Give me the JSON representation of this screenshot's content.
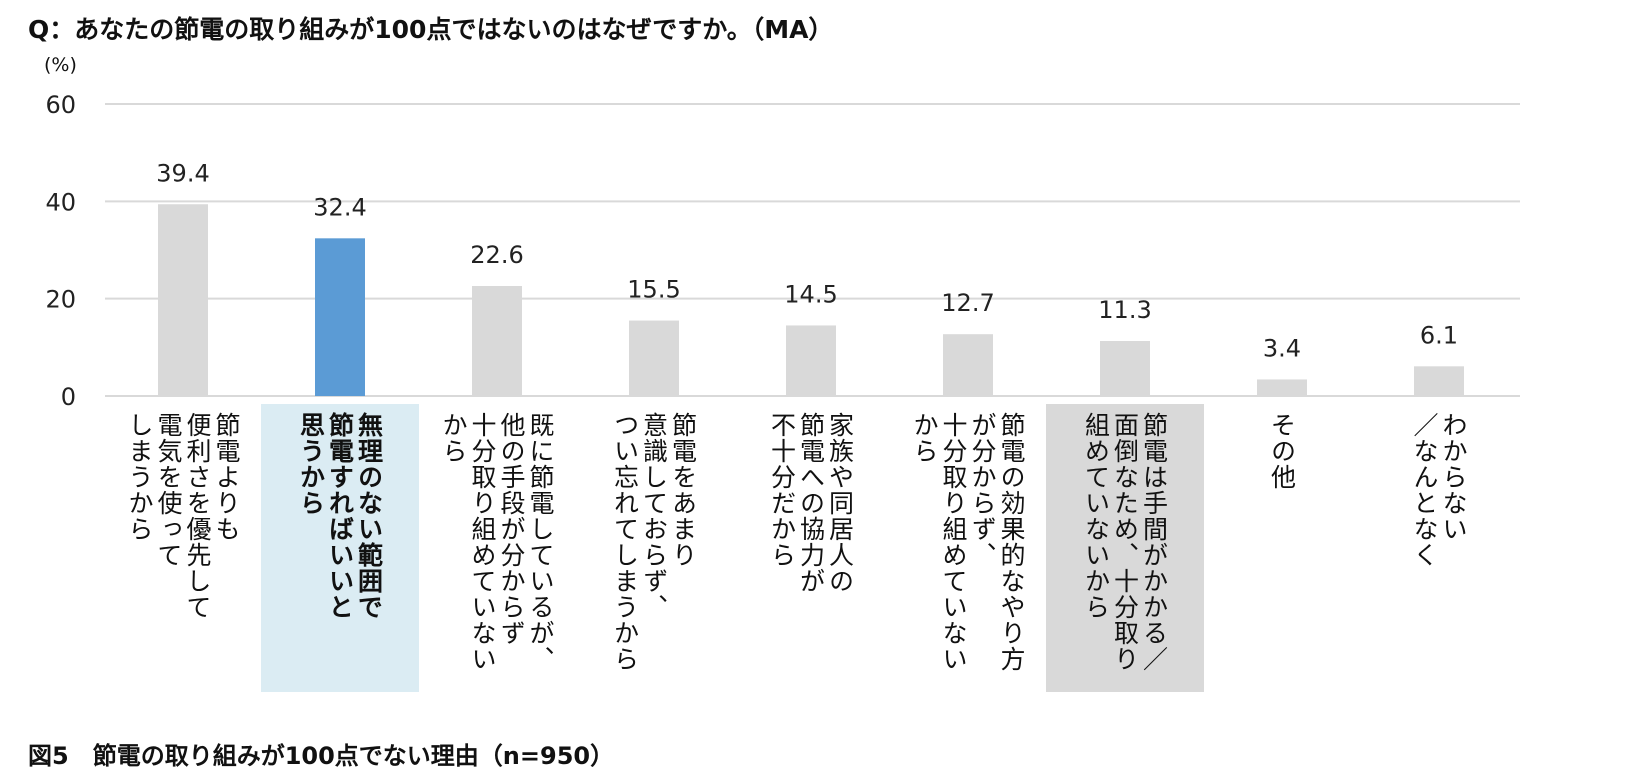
{
  "question": "Q：あなたの節電の取り組みが100点ではないのはなぜですか。（MA）",
  "unit_label": "(%)",
  "caption": "図5　節電の取り組みが100点でない理由（n=950）",
  "colors": {
    "bar_default": "#d9d9d9",
    "bar_highlight": "#5b9bd5",
    "label_bg_blue": "#dbecf3",
    "label_bg_gray": "#d9d9d9",
    "grid": "#d9d9d9"
  },
  "chart_data": {
    "type": "bar",
    "ylim": [
      0,
      60
    ],
    "yticks": [
      "0",
      "20",
      "40",
      "60"
    ],
    "grid": true,
    "categories": [
      {
        "lines": [
          "節電よりも",
          "便利さを優先して",
          "電気を使って",
          "しまうから"
        ],
        "value": 39.4,
        "value_label": "39.4",
        "highlight": "none"
      },
      {
        "lines": [
          "無理のない範囲で",
          "節電すればいいと",
          "思うから"
        ],
        "value": 32.4,
        "value_label": "32.4",
        "highlight": "blue"
      },
      {
        "lines": [
          "既に節電しているが、",
          "他の手段が分からず",
          "十分取り組めていない",
          "から"
        ],
        "value": 22.6,
        "value_label": "22.6",
        "highlight": "none"
      },
      {
        "lines": [
          "節電をあまり",
          "意識しておらず、",
          "つい忘れてしまうから"
        ],
        "value": 15.5,
        "value_label": "15.5",
        "highlight": "none"
      },
      {
        "lines": [
          "家族や同居人の",
          "節電への協力が",
          "不十分だから"
        ],
        "value": 14.5,
        "value_label": "14.5",
        "highlight": "none"
      },
      {
        "lines": [
          "節電の効果的なやり方",
          "が分からず、",
          "十分取り組めていない",
          "から"
        ],
        "value": 12.7,
        "value_label": "12.7",
        "highlight": "none"
      },
      {
        "lines": [
          "節電は手間がかかる／",
          "面倒なため、十分取り",
          "組めていないから"
        ],
        "value": 11.3,
        "value_label": "11.3",
        "highlight": "gray"
      },
      {
        "lines": [
          "その他"
        ],
        "value": 3.4,
        "value_label": "3.4",
        "highlight": "none"
      },
      {
        "lines": [
          "わからない",
          "／なんとなく"
        ],
        "value": 6.1,
        "value_label": "6.1",
        "highlight": "none"
      }
    ]
  }
}
